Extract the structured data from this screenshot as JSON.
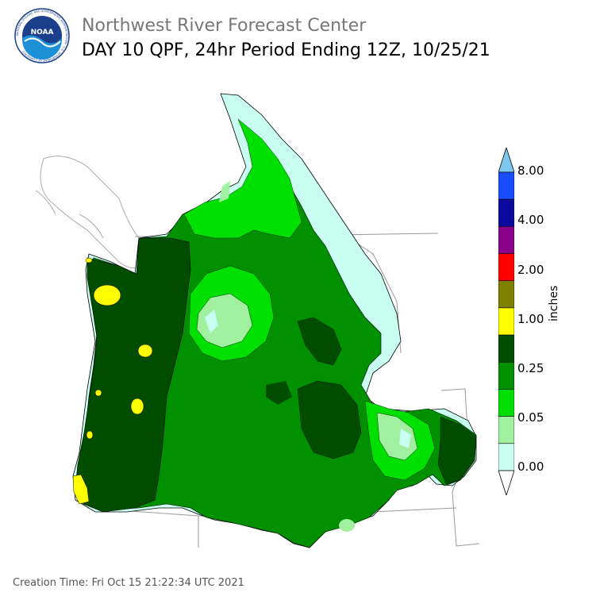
{
  "header": {
    "organization": "Northwest River Forecast Center",
    "product_title": "DAY 10 QPF, 24hr Period Ending 12Z, 10/25/21"
  },
  "logo": {
    "text": "NOAA",
    "ring_text": "NATIONAL OCEANIC AND ATMOSPHERIC ADMINISTRATION · U.S. DEPARTMENT OF COMMERCE",
    "colors": {
      "dark_blue": "#1b3f8b",
      "light_blue": "#1e90d8",
      "white": "#ffffff"
    }
  },
  "legend": {
    "units_label": "inches",
    "tick_labels": [
      "8.00",
      "4.00",
      "2.00",
      "1.00",
      "0.25",
      "0.05",
      "0.00"
    ],
    "color_bins": [
      {
        "color": "#7ec8f0",
        "role": "above max"
      },
      {
        "color": "#1a4cff",
        "role": "8.00"
      },
      {
        "color": "#0a0aa0"
      },
      {
        "color": "#8b008b",
        "role": "4.00"
      },
      {
        "color": "#ff0000"
      },
      {
        "color": "#7f7f00",
        "role": "2.00"
      },
      {
        "color": "#ffff00"
      },
      {
        "color": "#004d00",
        "role": "1.00"
      },
      {
        "color": "#009000"
      },
      {
        "color": "#00e000",
        "role": "0.25"
      },
      {
        "color": "#a0f0a0"
      },
      {
        "color": "#c8fff0",
        "role": "0.05"
      },
      {
        "color": "#ffffff",
        "role": "0.00"
      }
    ]
  },
  "map": {
    "region": "Pacific Northwest / Columbia River Basin",
    "colors": {
      "heavy": "#004d00",
      "moderate": "#009000",
      "light_moderate": "#00e000",
      "light": "#a0f0a0",
      "trace": "#c8fff0",
      "high": "#ffff00",
      "boundary": "#999999",
      "basin_outline": "#000000"
    }
  },
  "footer": {
    "creation_time": "Creation Time: Fri Oct 15 21:22:34 UTC 2021"
  }
}
